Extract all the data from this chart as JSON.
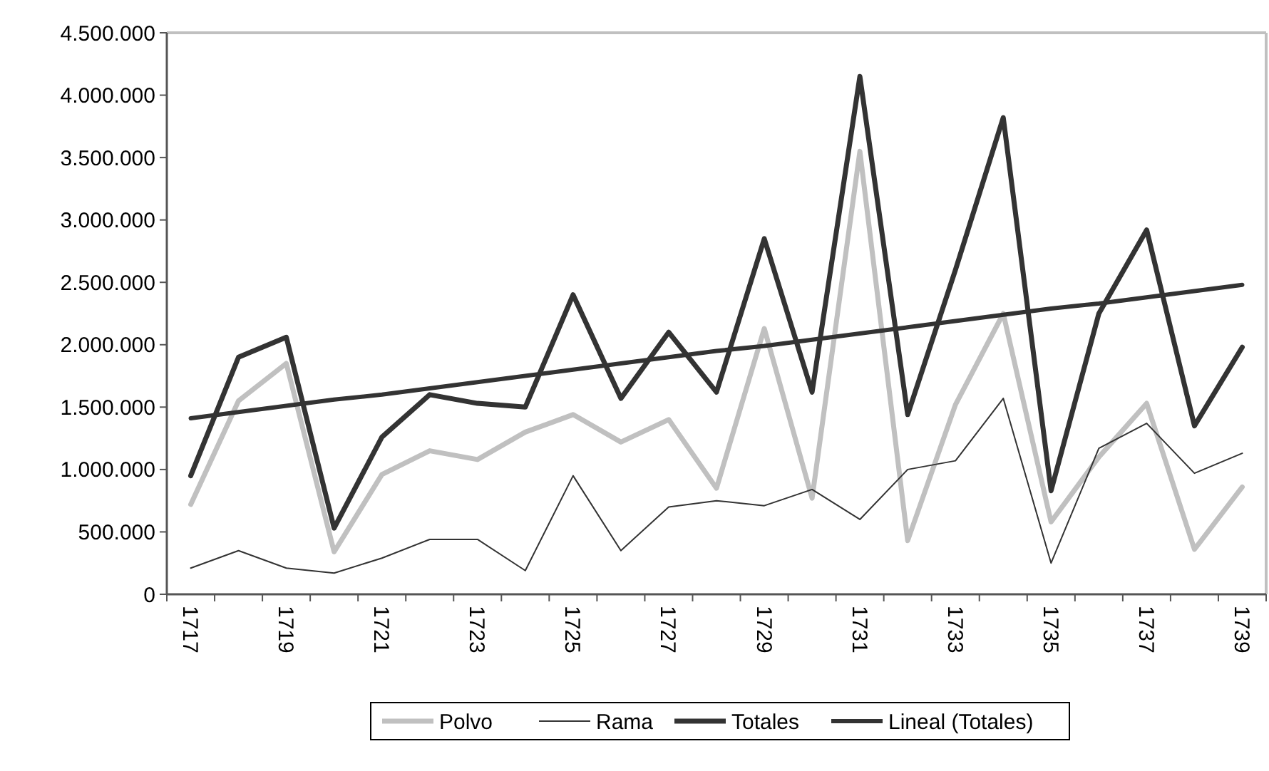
{
  "chart_data": {
    "type": "line",
    "categories": [
      "1717",
      null,
      "1719",
      null,
      "1721",
      null,
      "1723",
      null,
      "1725",
      null,
      "1727",
      null,
      "1729",
      null,
      "1731",
      null,
      "1733",
      null,
      "1735",
      null,
      "1737",
      null,
      "1739"
    ],
    "series": [
      {
        "name": "Polvo",
        "color": "#c0c0c0",
        "values": [
          720000,
          1550000,
          1850000,
          340000,
          960000,
          1150000,
          1080000,
          1300000,
          1440000,
          1220000,
          1400000,
          850000,
          2130000,
          770000,
          3550000,
          430000,
          1520000,
          2250000,
          580000,
          1100000,
          1530000,
          360000,
          860000
        ]
      },
      {
        "name": "Rama",
        "color": "#333333",
        "values": [
          210000,
          350000,
          210000,
          170000,
          290000,
          440000,
          440000,
          190000,
          950000,
          350000,
          700000,
          750000,
          710000,
          840000,
          600000,
          1000000,
          1070000,
          1570000,
          250000,
          1170000,
          1370000,
          970000,
          1130000
        ]
      },
      {
        "name": "Totales",
        "color": "#333333",
        "values": [
          950000,
          1900000,
          2060000,
          530000,
          1260000,
          1600000,
          1530000,
          1500000,
          2400000,
          1570000,
          2100000,
          1620000,
          2850000,
          1620000,
          4150000,
          1440000,
          2600000,
          3820000,
          830000,
          2250000,
          2920000,
          1350000,
          1980000
        ]
      },
      {
        "name": "Lineal (Totales)",
        "color": "#333333",
        "values": [
          1410000,
          1460000,
          1510000,
          1560000,
          1600000,
          1650000,
          1700000,
          1750000,
          1800000,
          1850000,
          1900000,
          1950000,
          1990000,
          2040000,
          2090000,
          2140000,
          2190000,
          2240000,
          2290000,
          2330000,
          2380000,
          2430000,
          2480000
        ]
      }
    ],
    "ylim": [
      0,
      4500000
    ],
    "yticks": [
      {
        "value": 0,
        "label": "0"
      },
      {
        "value": 500000,
        "label": "500.000"
      },
      {
        "value": 1000000,
        "label": "1.000.000"
      },
      {
        "value": 1500000,
        "label": "1.500.000"
      },
      {
        "value": 2000000,
        "label": "2.000.000"
      },
      {
        "value": 2500000,
        "label": "2.500.000"
      },
      {
        "value": 3000000,
        "label": "3.000.000"
      },
      {
        "value": 3500000,
        "label": "3.500.000"
      },
      {
        "value": 4000000,
        "label": "4.000.000"
      },
      {
        "value": 4500000,
        "label": "4.500.000"
      }
    ],
    "grid": false,
    "legend": "bottom",
    "marker": "none",
    "line_style": "solid"
  }
}
